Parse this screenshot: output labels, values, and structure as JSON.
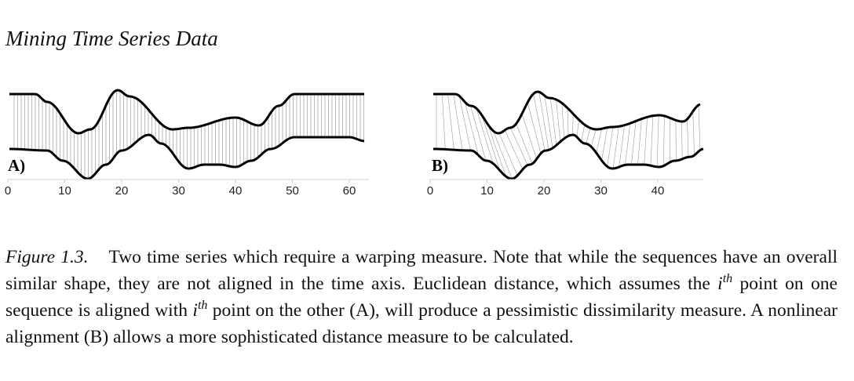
{
  "running_head": "Mining Time Series Data",
  "figure": {
    "panels": [
      {
        "label": "A)",
        "ticks": [
          "0",
          "10",
          "20",
          "30",
          "40",
          "50",
          "60"
        ]
      },
      {
        "label": "B)",
        "ticks": [
          "0",
          "10",
          "20",
          "30",
          "40"
        ]
      }
    ]
  },
  "caption": {
    "label": "Figure 1.3.",
    "text_1": "Two time series which require a warping measure. Note that while the sequences have an overall similar shape, they are not aligned in the time axis. Euclidean distance, which assumes the ",
    "sup_1": "th",
    "text_2": " point on one sequence is aligned with ",
    "sup_2": "th",
    "text_3": " point on the other (A), will produce a pessimistic dissimilarity measure.  A nonlinear alignment (B) allows a more sophisticated distance measure to be calculated.",
    "var": "i"
  }
}
